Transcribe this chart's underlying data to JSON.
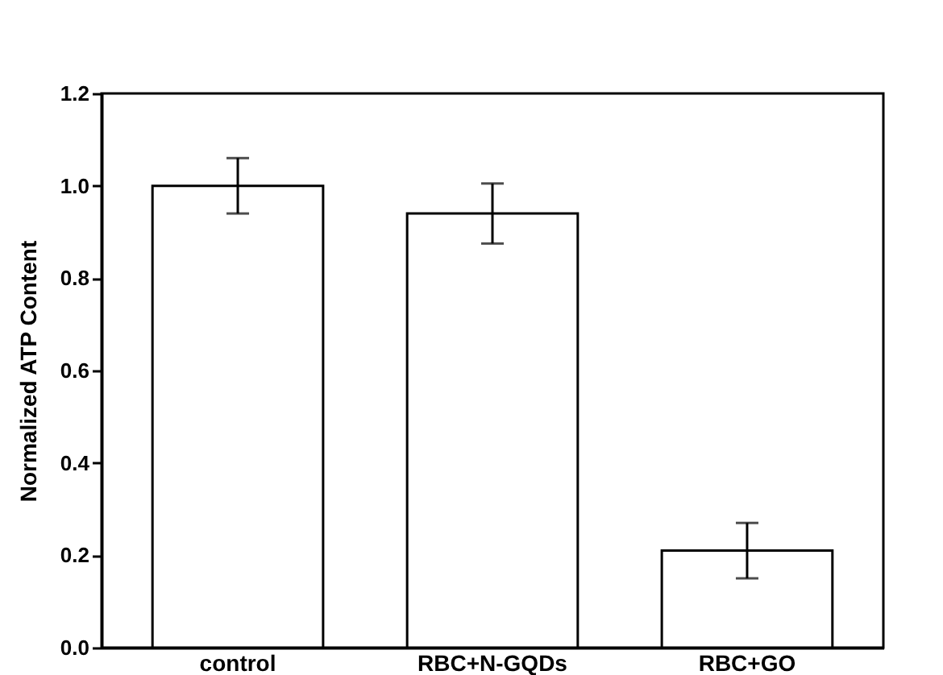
{
  "chart_data": {
    "type": "bar",
    "ylabel": "Normalized ATP Content",
    "categories": [
      "control",
      "RBC+N-GQDs",
      "RBC+GO"
    ],
    "values": [
      1.0,
      0.94,
      0.21
    ],
    "errors": [
      0.06,
      0.065,
      0.06
    ],
    "color": "#ffffff",
    "ylim": [
      0,
      1.2
    ],
    "yticks": [
      {
        "value": 0,
        "label": "0.0"
      },
      {
        "value": 0.2,
        "label": "0.2"
      },
      {
        "value": 0.4,
        "label": "0.4"
      },
      {
        "value": 0.6,
        "label": "0.6"
      },
      {
        "value": 0.8,
        "label": "0.8"
      },
      {
        "value": 1,
        "label": "1.0"
      },
      {
        "value": 1.2,
        "label": "1.2"
      }
    ],
    "grid": false
  }
}
